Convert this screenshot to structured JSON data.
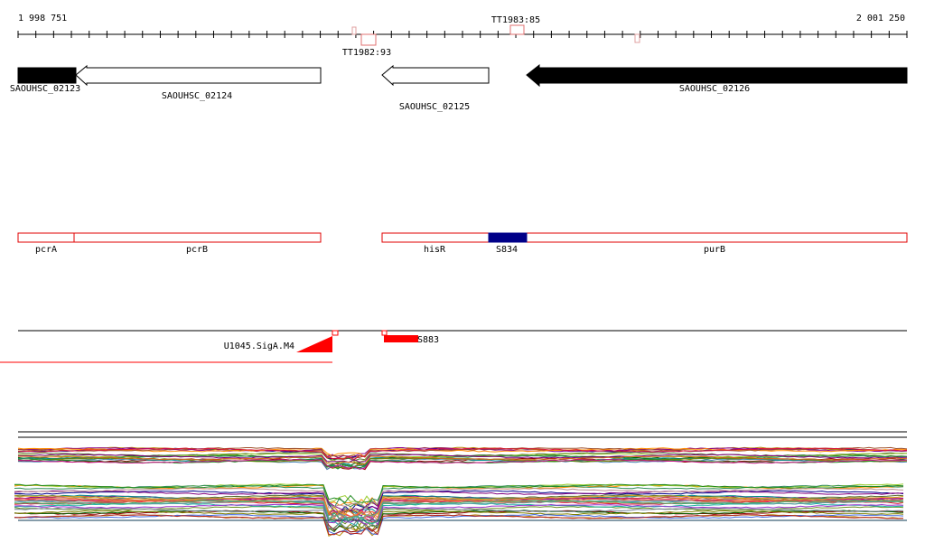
{
  "ruler": {
    "start_label": "1 998 751",
    "end_label": "2 001 250",
    "terminator_labels": {
      "upper": "TT1983:85",
      "lower": "TT1982:93"
    }
  },
  "genes": {
    "g1": "SAOUHSC_02123",
    "g2": "SAOUHSC_02124",
    "g3": "SAOUHSC_02125",
    "g4": "SAOUHSC_02126"
  },
  "operon_genes": {
    "pcra": "pcrA",
    "pcrb": "pcrB",
    "hisr": "hisR",
    "s834": "S834",
    "purb": "purB"
  },
  "operon_colors": {
    "outline": "#e00000",
    "srna": "#000088"
  },
  "features": {
    "promoter": "U1045.SigA.M4",
    "srna": "S883"
  },
  "feature_colors": {
    "fill": "#ff0000"
  },
  "expression_colors": [
    "#8B0000",
    "#006400",
    "#00008B",
    "#B8860B",
    "#8B008B",
    "#008B8B",
    "#FF8C00",
    "#556B2F",
    "#9ACD32",
    "#A0522D",
    "#2E8B57",
    "#DC143C",
    "#4682B4",
    "#808000",
    "#800080",
    "#D2691E",
    "#228B22",
    "#C71585",
    "#6B8E23",
    "#4169E1",
    "#CD853F",
    "#20B2AA",
    "#B22222",
    "#708090",
    "#FF6347",
    "#DAA520",
    "#5F9EA0",
    "#9932CC",
    "#3CB371",
    "#BC8F8F"
  ]
}
